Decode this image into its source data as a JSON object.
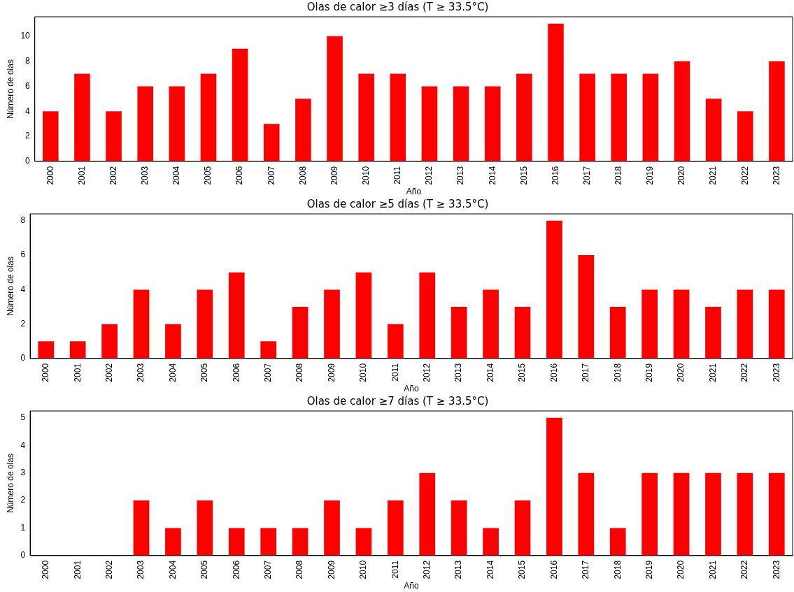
{
  "chart_data": [
    {
      "type": "bar",
      "title": "Olas de calor ≥3 días (T ≥ 33.5°C)",
      "xlabel": "Año",
      "ylabel": "Número de olas",
      "categories": [
        "2000",
        "2001",
        "2002",
        "2003",
        "2004",
        "2005",
        "2006",
        "2007",
        "2008",
        "2009",
        "2010",
        "2011",
        "2012",
        "2013",
        "2014",
        "2015",
        "2016",
        "2017",
        "2018",
        "2019",
        "2020",
        "2021",
        "2022",
        "2023"
      ],
      "values": [
        4,
        7,
        4,
        6,
        6,
        7,
        9,
        3,
        5,
        10,
        7,
        7,
        6,
        6,
        6,
        7,
        11,
        7,
        7,
        7,
        8,
        5,
        4,
        8
      ],
      "color": "#ff0000",
      "ylim": [
        0,
        11.55
      ],
      "yticks": [
        0,
        2,
        4,
        6,
        8,
        10
      ],
      "grid": false,
      "legend": false
    },
    {
      "type": "bar",
      "title": "Olas de calor ≥5 días (T ≥ 33.5°C)",
      "xlabel": "Año",
      "ylabel": "Número de olas",
      "categories": [
        "2000",
        "2001",
        "2002",
        "2003",
        "2004",
        "2005",
        "2006",
        "2007",
        "2008",
        "2009",
        "2010",
        "2011",
        "2012",
        "2013",
        "2014",
        "2015",
        "2016",
        "2017",
        "2018",
        "2019",
        "2020",
        "2021",
        "2022",
        "2023"
      ],
      "values": [
        1,
        1,
        2,
        4,
        2,
        4,
        5,
        1,
        3,
        4,
        5,
        2,
        5,
        3,
        4,
        3,
        8,
        6,
        3,
        4,
        4,
        3,
        4,
        4
      ],
      "color": "#ff0000",
      "ylim": [
        0,
        8.4
      ],
      "yticks": [
        0,
        2,
        4,
        6,
        8
      ],
      "grid": false,
      "legend": false
    },
    {
      "type": "bar",
      "title": "Olas de calor ≥7 días (T ≥ 33.5°C)",
      "xlabel": "Año",
      "ylabel": "Número de olas",
      "categories": [
        "2000",
        "2001",
        "2002",
        "2003",
        "2004",
        "2005",
        "2006",
        "2007",
        "2008",
        "2009",
        "2010",
        "2011",
        "2012",
        "2013",
        "2014",
        "2015",
        "2016",
        "2017",
        "2018",
        "2019",
        "2020",
        "2021",
        "2022",
        "2023"
      ],
      "values": [
        0,
        0,
        0,
        2,
        1,
        2,
        1,
        1,
        1,
        2,
        1,
        2,
        3,
        2,
        1,
        2,
        5,
        3,
        1,
        3,
        3,
        3,
        3,
        3
      ],
      "color": "#ff0000",
      "ylim": [
        0,
        5.25
      ],
      "yticks": [
        0,
        1,
        2,
        3,
        4,
        5
      ],
      "grid": false,
      "legend": false
    }
  ]
}
